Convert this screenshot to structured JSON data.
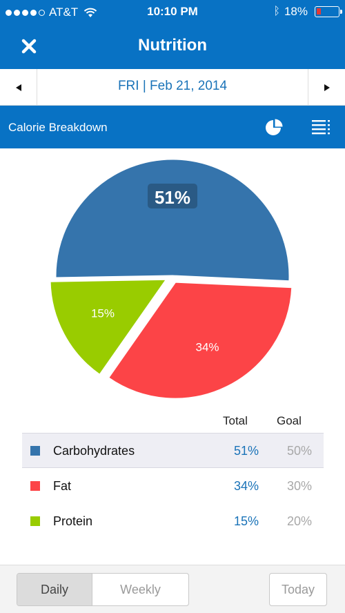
{
  "status_bar": {
    "carrier": "AT&T",
    "time": "10:10 PM",
    "battery": "18%",
    "signal_bars": 4
  },
  "nav": {
    "title": "Nutrition",
    "close_icon": "close-icon"
  },
  "date_bar": {
    "date": "FRI | Feb 21, 2014",
    "prev_icon": "left-arrow-icon",
    "next_icon": "right-arrow-icon"
  },
  "section": {
    "title": "Calorie Breakdown",
    "view_icons": [
      "pie-chart-icon",
      "list-icon"
    ]
  },
  "chart_data": {
    "type": "pie",
    "slices": [
      {
        "name": "Carbohydrates",
        "value": 51,
        "label": "51%",
        "color": "#3574ac"
      },
      {
        "name": "Fat",
        "value": 34,
        "label": "34%",
        "color": "#fc4447"
      },
      {
        "name": "Protein",
        "value": 15,
        "label": "15%",
        "color": "#99cc00"
      }
    ]
  },
  "table": {
    "headers": {
      "total": "Total",
      "goal": "Goal"
    },
    "rows": [
      {
        "label": "Carbohydrates",
        "total": "51%",
        "goal": "50%",
        "color": "#3574ac"
      },
      {
        "label": "Fat",
        "total": "34%",
        "goal": "30%",
        "color": "#fc4447"
      },
      {
        "label": "Protein",
        "total": "15%",
        "goal": "20%",
        "color": "#99cc00"
      }
    ]
  },
  "bottom_bar": {
    "daily": "Daily",
    "weekly": "Weekly",
    "today": "Today",
    "selected": "Daily"
  }
}
